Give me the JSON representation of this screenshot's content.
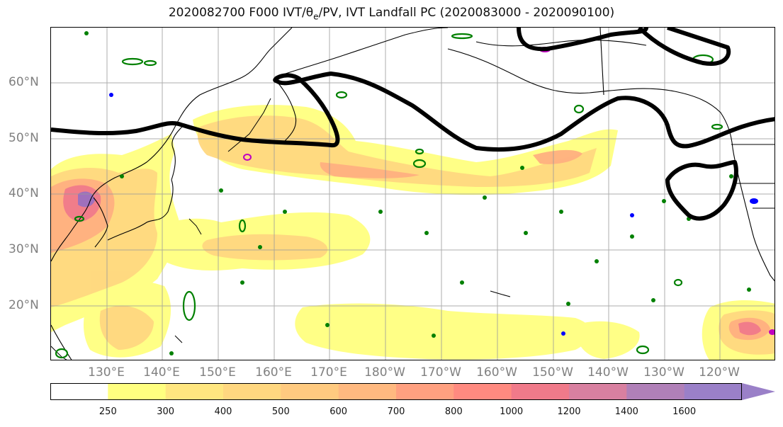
{
  "title": {
    "prefix": "2020082700 F000 IVT/",
    "theta": "θ",
    "theta_sub": "e",
    "suffix": "/PV, IVT Landfall PC (2020083000 - 2020090100)"
  },
  "map": {
    "lat_labels": [
      "60°N",
      "50°N",
      "40°N",
      "30°N",
      "20°N"
    ],
    "lon_labels": [
      "130°E",
      "140°E",
      "150°E",
      "160°E",
      "170°E",
      "180°W",
      "170°W",
      "160°W",
      "150°W",
      "140°W",
      "130°W",
      "120°W"
    ],
    "lat_range": [
      10,
      70
    ],
    "lon_range_east": [
      120,
      250
    ],
    "gridlines": true
  },
  "colorbar": {
    "ticks": [
      "250",
      "300",
      "400",
      "500",
      "600",
      "700",
      "800",
      "1000",
      "1200",
      "1400",
      "1600"
    ],
    "colors": [
      "#ffffff",
      "#ffff80",
      "#ffe680",
      "#ffd780",
      "#ffca80",
      "#ffb980",
      "#ffa080",
      "#ff8a80",
      "#f07a8a",
      "#d880a0",
      "#b080b8",
      "#9a80c8"
    ],
    "extend": "max"
  },
  "legend_colors": {
    "ivt_low": "#ffff80",
    "ivt_mid": "#ffc880",
    "ivt_high": "#ff8080",
    "ivt_extreme": "#9a70c0",
    "pv_contour": "#000000",
    "theta_green": "#008000",
    "blue": "#0000ff",
    "magenta": "#c000c0"
  }
}
